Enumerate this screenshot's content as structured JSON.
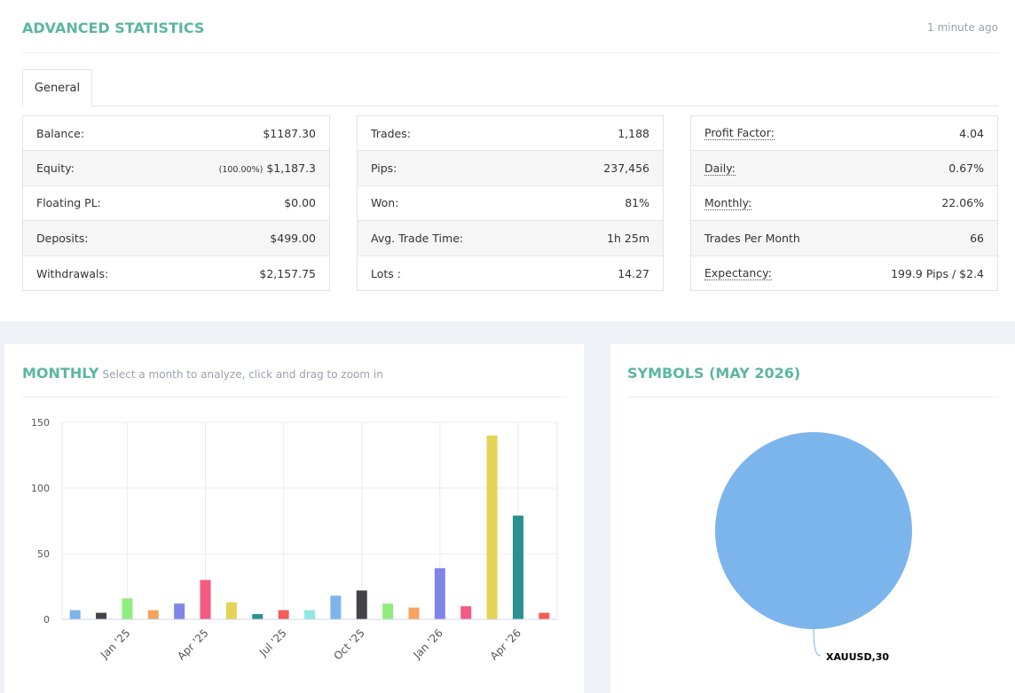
{
  "header": {
    "title": "ADVANCED STATISTICS",
    "updated": "1 minute ago"
  },
  "tabs": [
    "General"
  ],
  "stats": [
    [
      {
        "label": "Balance:",
        "value": "$1187.30"
      },
      {
        "label": "Equity:",
        "note": "(100.00%)",
        "value": "$1,187.3"
      },
      {
        "label": "Floating PL:",
        "value": "$0.00"
      },
      {
        "label": "Deposits:",
        "value": "$499.00"
      },
      {
        "label": "Withdrawals:",
        "value": "$2,157.75"
      }
    ],
    [
      {
        "label": "Trades:",
        "value": "1,188"
      },
      {
        "label": "Pips:",
        "value": "237,456"
      },
      {
        "label": "Won:",
        "value": "81%"
      },
      {
        "label": "Avg. Trade Time:",
        "value": "1h 25m"
      },
      {
        "label": "Lots :",
        "value": "14.27"
      }
    ],
    [
      {
        "label": "Profit Factor:",
        "value": "4.04",
        "underline": true
      },
      {
        "label": "Daily:",
        "value": "0.67%",
        "underline": true
      },
      {
        "label": "Monthly:",
        "value": "22.06%",
        "underline": true
      },
      {
        "label": "Trades Per Month",
        "value": "66"
      },
      {
        "label": "Expectancy:",
        "value": "199.9 Pips / $2.4",
        "underline": true
      }
    ]
  ],
  "chart_data": [
    {
      "type": "bar",
      "title": "MONTHLY",
      "subtitle": "Select a month to analyze, click and drag to zoom in",
      "categories": [
        null,
        null,
        "Jan '25",
        null,
        null,
        "Apr '25",
        null,
        null,
        "Jul '25",
        null,
        null,
        "Oct '25",
        null,
        null,
        "Jan '26",
        null,
        null,
        "Apr '26",
        null
      ],
      "values": [
        7,
        5,
        16,
        7,
        12,
        30,
        13,
        4,
        7,
        7,
        18,
        22,
        12,
        9,
        39,
        10,
        140,
        79,
        5
      ],
      "colors": [
        "#7cb5ec",
        "#434348",
        "#90ed7d",
        "#f7a35c",
        "#8085e9",
        "#f15c80",
        "#e4d354",
        "#2b908f",
        "#f45b5b",
        "#91e8e1"
      ],
      "ylim": [
        0,
        150
      ],
      "yticks": [
        0,
        50,
        100,
        150
      ],
      "grid": true
    },
    {
      "type": "pie",
      "title": "SYMBOLS (MAY 2026)",
      "values": [
        30
      ],
      "value_labels": [
        "XAUUSD,30"
      ],
      "colors": [
        "#7cb5ec"
      ]
    }
  ]
}
